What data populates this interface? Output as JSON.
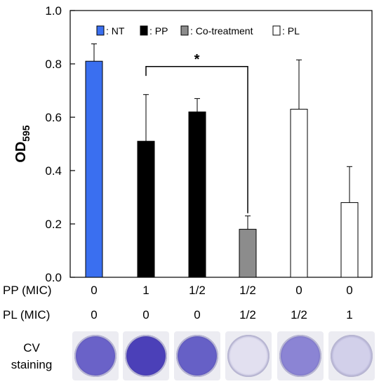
{
  "chart_data": {
    "type": "bar",
    "ylabel": "OD",
    "ylabel_sub": "595",
    "ylim": [
      0,
      1.0
    ],
    "yticks": [
      "0.0",
      "0.2",
      "0.4",
      "0.6",
      "0.8",
      "1.0"
    ],
    "grid": false,
    "legend_position": "top",
    "legend": [
      {
        "label": ": NT",
        "color": "#3a6ff0"
      },
      {
        "label": ": PP",
        "color": "#000000"
      },
      {
        "label": ": Co-treatment",
        "color": "#8c8c8c"
      },
      {
        "label": ": PL",
        "color": "#ffffff"
      }
    ],
    "bars": [
      {
        "group": "NT",
        "value": 0.81,
        "error": 0.065,
        "color": "#3a6ff0"
      },
      {
        "group": "PP",
        "value": 0.51,
        "error": 0.175,
        "color": "#000000"
      },
      {
        "group": "PP",
        "value": 0.62,
        "error": 0.05,
        "color": "#000000"
      },
      {
        "group": "Co-treatment",
        "value": 0.18,
        "error": 0.05,
        "color": "#8c8c8c"
      },
      {
        "group": "PL",
        "value": 0.63,
        "error": 0.185,
        "color": "#ffffff"
      },
      {
        "group": "PL",
        "value": 0.28,
        "error": 0.135,
        "color": "#ffffff"
      }
    ],
    "significance": {
      "from_bar": 1,
      "to_bar": 3,
      "label": "*"
    }
  },
  "rows": {
    "pp": {
      "label": "PP (MIC)",
      "values": [
        "0",
        "1",
        "1/2",
        "1/2",
        "0",
        "0"
      ]
    },
    "pl": {
      "label": "PL (MIC)",
      "values": [
        "0",
        "0",
        "0",
        "1/2",
        "1/2",
        "1"
      ]
    }
  },
  "cv": {
    "label_line1": "CV",
    "label_line2": "staining",
    "wells": [
      {
        "stain": "#6a62c8"
      },
      {
        "stain": "#4b40b8"
      },
      {
        "stain": "#6660c6"
      },
      {
        "stain": "#e2e0f0"
      },
      {
        "stain": "#8b84d4"
      },
      {
        "stain": "#d2d0ea"
      }
    ]
  }
}
